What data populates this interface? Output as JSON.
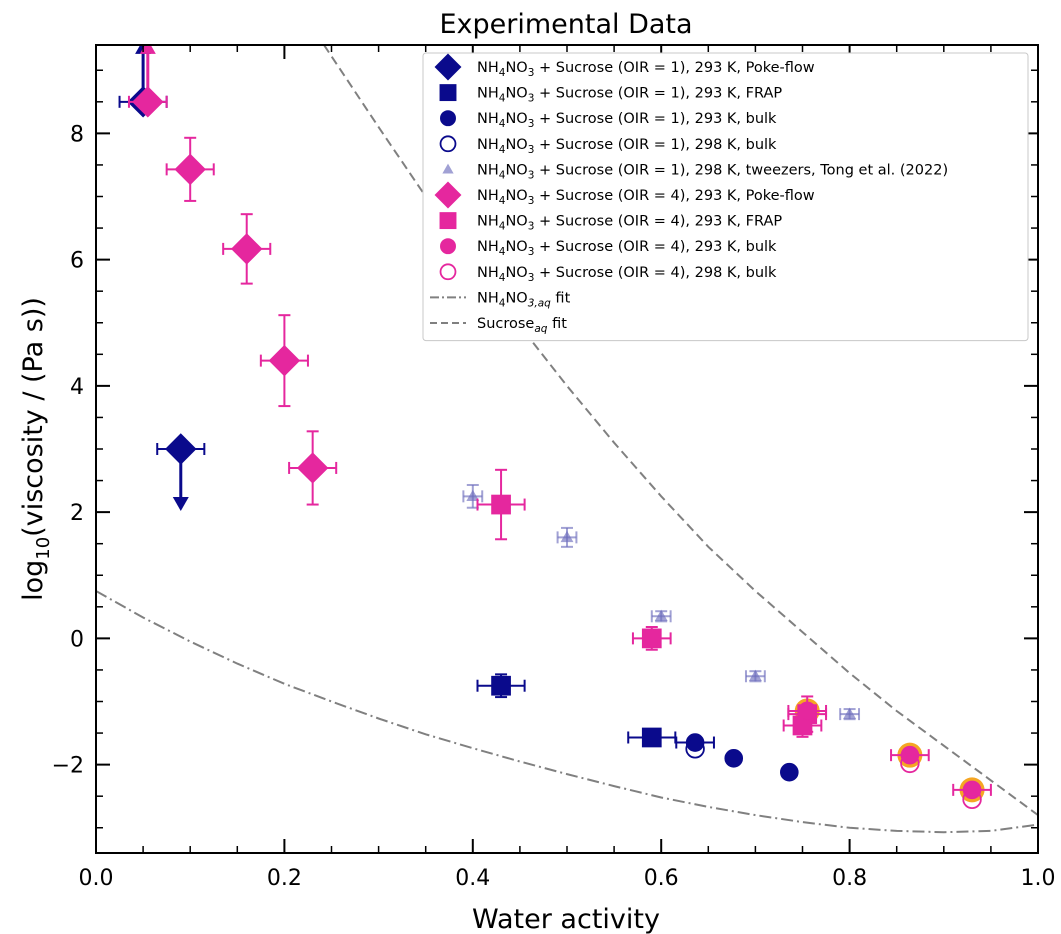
{
  "chart_data": {
    "type": "scatter",
    "title": "Experimental Data",
    "xlabel": "Water activity",
    "ylabel": "log10(viscosity / (Pa s))",
    "xlim": [
      0.0,
      1.0
    ],
    "ylim": [
      -3.4,
      9.4
    ],
    "x_ticks": [
      0.0,
      0.2,
      0.4,
      0.6,
      0.8,
      1.0
    ],
    "x_tick_labels": [
      "0.0",
      "0.2",
      "0.4",
      "0.6",
      "0.8",
      "1.0"
    ],
    "y_ticks": [
      -2,
      0,
      2,
      4,
      6,
      8
    ],
    "y_tick_labels": [
      "−2",
      "0",
      "2",
      "4",
      "6",
      "8"
    ],
    "grid": false,
    "legend_position": "top-right",
    "series": [
      {
        "name": "NH₄NO₃ + Sucrose (OIR = 1), 293 K, Poke-flow",
        "marker": "diamond",
        "fill": true,
        "color": "#0a0a8c",
        "points": [
          {
            "x": 0.05,
            "y": 8.5,
            "xerr": 0.025,
            "limit": "lower"
          },
          {
            "x": 0.09,
            "y": 3.0,
            "xerr": 0.025,
            "limit": "upper"
          }
        ]
      },
      {
        "name": "NH₄NO₃ + Sucrose (OIR = 1), 293 K, FRAP",
        "marker": "square",
        "fill": true,
        "color": "#0a0a8c",
        "points": [
          {
            "x": 0.43,
            "y": -0.75,
            "xerr": 0.025,
            "yerr": 0.18
          },
          {
            "x": 0.59,
            "y": -1.57,
            "xerr": 0.025
          }
        ]
      },
      {
        "name": "NH₄NO₃ + Sucrose (OIR = 1), 293 K, bulk",
        "marker": "circle",
        "fill": true,
        "color": "#0a0a8c",
        "points": [
          {
            "x": 0.636,
            "y": -1.65,
            "xerr": 0.02
          },
          {
            "x": 0.677,
            "y": -1.9
          },
          {
            "x": 0.736,
            "y": -2.12
          }
        ]
      },
      {
        "name": "NH₄NO₃ + Sucrose (OIR = 1), 298 K, bulk",
        "marker": "circle",
        "fill": false,
        "color": "#0a0a8c",
        "points": [
          {
            "x": 0.636,
            "y": -1.75
          }
        ]
      },
      {
        "name": "NH₄NO₃ + Sucrose (OIR = 1), 298 K, tweezers, Tong et al. (2022)",
        "marker": "triangle",
        "fill": true,
        "color": "#6f6fbe",
        "alpha": 0.65,
        "points": [
          {
            "x": 0.4,
            "y": 2.25,
            "xerr": 0.01,
            "yerr": 0.18
          },
          {
            "x": 0.5,
            "y": 1.6,
            "xerr": 0.01,
            "yerr": 0.15
          },
          {
            "x": 0.6,
            "y": 0.35,
            "xerr": 0.01,
            "yerr": 0.08
          },
          {
            "x": 0.7,
            "y": -0.6,
            "xerr": 0.01,
            "yerr": 0.08
          },
          {
            "x": 0.8,
            "y": -1.2,
            "xerr": 0.01,
            "yerr": 0.08
          }
        ]
      },
      {
        "name": "NH₄NO₃ + Sucrose (OIR = 4), 293 K, Poke-flow",
        "marker": "diamond",
        "fill": true,
        "color": "#e5279e",
        "points": [
          {
            "x": 0.055,
            "y": 8.5,
            "xerr": 0.02,
            "limit": "lower"
          },
          {
            "x": 0.1,
            "y": 7.43,
            "xerr": 0.025,
            "yerr": 0.5
          },
          {
            "x": 0.16,
            "y": 6.17,
            "xerr": 0.025,
            "yerr": 0.55
          },
          {
            "x": 0.2,
            "y": 4.4,
            "xerr": 0.025,
            "yerr": 0.72
          },
          {
            "x": 0.23,
            "y": 2.7,
            "xerr": 0.025,
            "yerr": 0.58
          }
        ]
      },
      {
        "name": "NH₄NO₃ + Sucrose (OIR = 4), 293 K, FRAP",
        "marker": "square",
        "fill": true,
        "color": "#e5279e",
        "points": [
          {
            "x": 0.43,
            "y": 2.12,
            "xerr": 0.025,
            "yerr": 0.55
          },
          {
            "x": 0.59,
            "y": 0.0,
            "xerr": 0.02,
            "yerr": 0.18
          },
          {
            "x": 0.755,
            "y": -1.2,
            "xerr": 0.02,
            "yerr": 0.28
          },
          {
            "x": 0.75,
            "y": -1.38,
            "xerr": 0.02,
            "yerr": 0.18
          }
        ]
      },
      {
        "name": "NH₄NO₃ + Sucrose (OIR = 4), 293 K, bulk",
        "marker": "circle",
        "fill": true,
        "color": "#e5279e",
        "points": [
          {
            "x": 0.755,
            "y": -1.15,
            "xerr": 0.02,
            "halo": true
          },
          {
            "x": 0.864,
            "y": -1.85,
            "xerr": 0.02,
            "halo": true
          },
          {
            "x": 0.93,
            "y": -2.4,
            "xerr": 0.02,
            "halo": true
          }
        ]
      },
      {
        "name": "NH₄NO₃ + Sucrose (OIR = 4), 298 K, bulk",
        "marker": "circle",
        "fill": false,
        "color": "#e5279e",
        "points": [
          {
            "x": 0.864,
            "y": -1.98
          },
          {
            "x": 0.93,
            "y": -2.55
          }
        ]
      }
    ],
    "fits": [
      {
        "name": "NH₄NO₃,aq fit",
        "style": "dashdot",
        "color": "#808080",
        "x": [
          0.0,
          0.05,
          0.1,
          0.15,
          0.2,
          0.25,
          0.3,
          0.35,
          0.4,
          0.45,
          0.5,
          0.55,
          0.6,
          0.65,
          0.7,
          0.75,
          0.8,
          0.85,
          0.9,
          0.95,
          1.0
        ],
        "y": [
          0.75,
          0.33,
          -0.05,
          -0.4,
          -0.72,
          -1.0,
          -1.27,
          -1.52,
          -1.74,
          -1.95,
          -2.15,
          -2.34,
          -2.52,
          -2.67,
          -2.8,
          -2.91,
          -3.0,
          -3.05,
          -3.07,
          -3.05,
          -2.95
        ]
      },
      {
        "name": "Sucroseaq fit",
        "style": "dashed",
        "color": "#808080",
        "x": [
          0.242,
          0.3,
          0.35,
          0.4,
          0.45,
          0.5,
          0.55,
          0.6,
          0.65,
          0.7,
          0.75,
          0.8,
          0.85,
          0.9,
          0.95,
          1.0
        ],
        "y": [
          9.4,
          8.1,
          7.0,
          5.95,
          4.95,
          4.0,
          3.1,
          2.25,
          1.45,
          0.75,
          0.1,
          -0.55,
          -1.15,
          -1.7,
          -2.25,
          -2.8
        ]
      }
    ]
  },
  "legend": {
    "entries": [
      {
        "key": "s0",
        "pre": "NH",
        "sub1": "4",
        "mid": "NO",
        "sub2": "3",
        "post": " + Sucrose (OIR = 1), 293 K, Poke-flow"
      },
      {
        "key": "s1",
        "pre": "NH",
        "sub1": "4",
        "mid": "NO",
        "sub2": "3",
        "post": " + Sucrose (OIR = 1), 293 K, FRAP"
      },
      {
        "key": "s2",
        "pre": "NH",
        "sub1": "4",
        "mid": "NO",
        "sub2": "3",
        "post": " + Sucrose (OIR = 1), 293 K, bulk"
      },
      {
        "key": "s3",
        "pre": "NH",
        "sub1": "4",
        "mid": "NO",
        "sub2": "3",
        "post": " + Sucrose (OIR = 1), 298 K, bulk"
      },
      {
        "key": "s4",
        "pre": "NH",
        "sub1": "4",
        "mid": "NO",
        "sub2": "3",
        "post": " + Sucrose (OIR = 1), 298 K, tweezers, Tong et al. (2022)"
      },
      {
        "key": "s5",
        "pre": "NH",
        "sub1": "4",
        "mid": "NO",
        "sub2": "3",
        "post": " + Sucrose (OIR = 4), 293 K, Poke-flow"
      },
      {
        "key": "s6",
        "pre": "NH",
        "sub1": "4",
        "mid": "NO",
        "sub2": "3",
        "post": " + Sucrose (OIR = 4), 293 K, FRAP"
      },
      {
        "key": "s7",
        "pre": "NH",
        "sub1": "4",
        "mid": "NO",
        "sub2": "3",
        "post": " + Sucrose (OIR = 4), 293 K, bulk"
      },
      {
        "key": "s8",
        "pre": "NH",
        "sub1": "4",
        "mid": "NO",
        "sub2": "3",
        "post": " + Sucrose (OIR = 4), 298 K, bulk"
      },
      {
        "key": "f0",
        "pre": "NH",
        "sub1": "4",
        "mid": "NO",
        "sub2": "3,aq",
        "post": " fit"
      },
      {
        "key": "f1",
        "pre": "Sucrose",
        "sub1": "aq",
        "mid": "",
        "sub2": "",
        "post": " fit"
      }
    ]
  },
  "colors": {
    "oir1": "#0a0a8c",
    "oir1_tweezers": "#6f6fbe",
    "oir4": "#e5279e",
    "halo": "#f5a623",
    "fit": "#808080"
  }
}
